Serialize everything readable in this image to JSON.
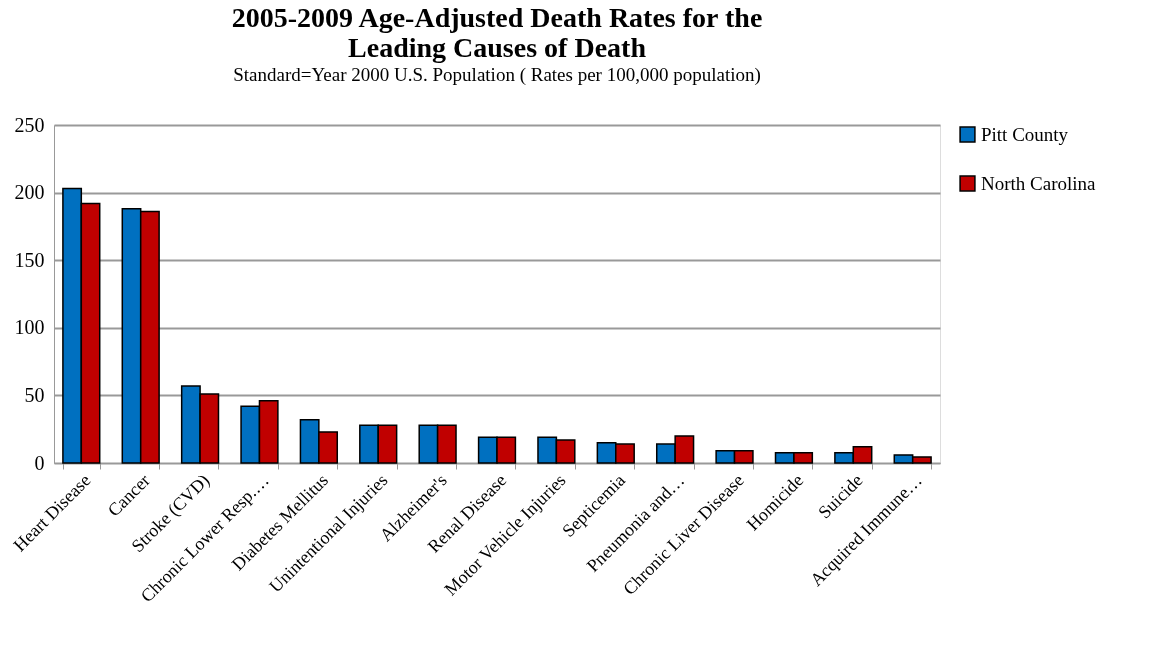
{
  "chart_data": {
    "type": "bar",
    "title": [
      "2005-2009 Age-Adjusted  Death Rates for the",
      "Leading Causes of Death"
    ],
    "subtitle": "Standard=Year 2000 U.S. Population ( Rates per 100,000 population)",
    "categories": [
      "Heart Disease",
      "Cancer",
      "Stroke (CVD)",
      "Chronic Lower Resp.…",
      "Diabetes Mellitus",
      "Unintentional Injuries",
      "Alzheimer's",
      "Renal Disease",
      "Motor Vehicle Injuries",
      "Septicemia",
      "Pneumonia and…",
      "Chronic Liver Disease",
      "Homicide",
      "Suicide",
      "Acquired Immune…"
    ],
    "series": [
      {
        "name": "Pitt County",
        "color": "#0070c0",
        "values": [
          203,
          188,
          57,
          42,
          32,
          28,
          28,
          19,
          19,
          15,
          14,
          9,
          7.5,
          7.5,
          6
        ]
      },
      {
        "name": "North Carolina",
        "color": "#c00000",
        "values": [
          192,
          186,
          51,
          46,
          23,
          28,
          28,
          19,
          17,
          14,
          20,
          9,
          7.5,
          12,
          4.5
        ]
      }
    ],
    "ylim": [
      0,
      250
    ],
    "yticks": [
      0,
      50,
      100,
      150,
      200,
      250
    ],
    "grid": "y",
    "legend": "right"
  }
}
